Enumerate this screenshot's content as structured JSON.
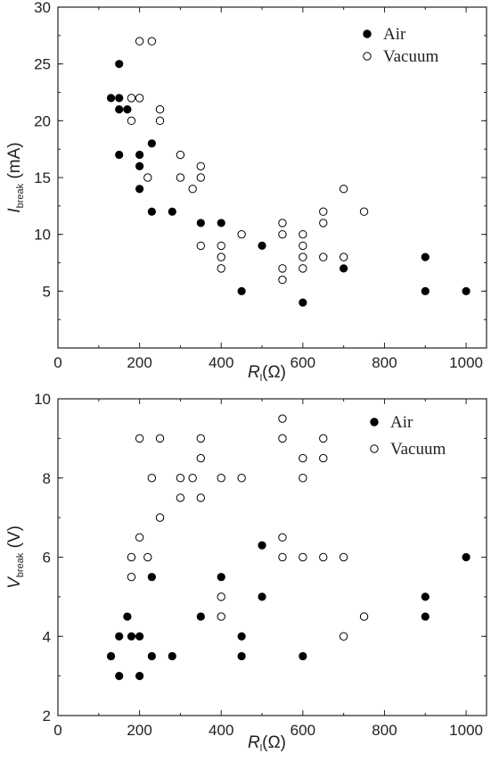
{
  "chart_data": [
    {
      "type": "scatter",
      "xlabel_main": "R",
      "xlabel_sub": "l",
      "xlabel_unit": "(Ω)",
      "ylabel_main": "I",
      "ylabel_sub": "break",
      "ylabel_unit": " (mA)",
      "xlim": [
        0,
        1050
      ],
      "ylim": [
        0,
        30
      ],
      "xticks": [
        0,
        200,
        400,
        600,
        800,
        1000
      ],
      "yticks": [
        5,
        10,
        15,
        20,
        25,
        30
      ],
      "ytick_labels": [
        "5",
        "10",
        "15",
        "20",
        "25",
        "30"
      ],
      "xtick_labels": [
        "0",
        "200",
        "400",
        "600",
        "800",
        "1000"
      ],
      "legend_position": "top-right",
      "series": [
        {
          "name": "Air",
          "marker": "filled-circle",
          "points": [
            [
              130,
              22
            ],
            [
              150,
              25
            ],
            [
              150,
              22
            ],
            [
              150,
              21
            ],
            [
              150,
              17
            ],
            [
              170,
              21
            ],
            [
              200,
              17
            ],
            [
              200,
              16
            ],
            [
              200,
              14
            ],
            [
              230,
              18
            ],
            [
              230,
              12
            ],
            [
              280,
              12
            ],
            [
              350,
              11
            ],
            [
              400,
              11
            ],
            [
              450,
              5
            ],
            [
              500,
              9
            ],
            [
              600,
              4
            ],
            [
              700,
              7
            ],
            [
              900,
              8
            ],
            [
              900,
              5
            ],
            [
              1000,
              5
            ]
          ]
        },
        {
          "name": "Vacuum",
          "marker": "open-circle",
          "points": [
            [
              180,
              22
            ],
            [
              180,
              20
            ],
            [
              200,
              27
            ],
            [
              200,
              22
            ],
            [
              220,
              15
            ],
            [
              230,
              27
            ],
            [
              250,
              21
            ],
            [
              250,
              20
            ],
            [
              300,
              17
            ],
            [
              300,
              15
            ],
            [
              330,
              14
            ],
            [
              350,
              16
            ],
            [
              350,
              15
            ],
            [
              350,
              9
            ],
            [
              400,
              9
            ],
            [
              400,
              8
            ],
            [
              400,
              7
            ],
            [
              450,
              10
            ],
            [
              550,
              11
            ],
            [
              550,
              10
            ],
            [
              550,
              7
            ],
            [
              550,
              6
            ],
            [
              600,
              10
            ],
            [
              600,
              9
            ],
            [
              600,
              8
            ],
            [
              600,
              7
            ],
            [
              650,
              12
            ],
            [
              650,
              11
            ],
            [
              650,
              8
            ],
            [
              700,
              14
            ],
            [
              700,
              8
            ],
            [
              750,
              12
            ]
          ]
        }
      ]
    },
    {
      "type": "scatter",
      "xlabel_main": "R",
      "xlabel_sub": "l",
      "xlabel_unit": "(Ω)",
      "ylabel_main": "V",
      "ylabel_sub": "break",
      "ylabel_unit": " (V)",
      "xlim": [
        0,
        1050
      ],
      "ylim": [
        2,
        10
      ],
      "xticks": [
        0,
        200,
        400,
        600,
        800,
        1000
      ],
      "yticks": [
        2,
        4,
        6,
        8,
        10
      ],
      "ytick_labels": [
        "2",
        "4",
        "6",
        "8",
        "10"
      ],
      "xtick_labels": [
        "0",
        "200",
        "400",
        "600",
        "800",
        "1000"
      ],
      "legend_position": "top-right",
      "series": [
        {
          "name": "Air",
          "marker": "filled-circle",
          "points": [
            [
              130,
              3.5
            ],
            [
              150,
              4
            ],
            [
              150,
              3
            ],
            [
              170,
              4.5
            ],
            [
              180,
              4
            ],
            [
              200,
              4
            ],
            [
              200,
              3
            ],
            [
              230,
              5.5
            ],
            [
              230,
              3.5
            ],
            [
              280,
              3.5
            ],
            [
              350,
              4.5
            ],
            [
              400,
              5.5
            ],
            [
              450,
              4
            ],
            [
              450,
              3.5
            ],
            [
              500,
              6.3
            ],
            [
              500,
              5
            ],
            [
              600,
              3.5
            ],
            [
              900,
              5
            ],
            [
              900,
              4.5
            ],
            [
              1000,
              6
            ]
          ]
        },
        {
          "name": "Vacuum",
          "marker": "open-circle",
          "points": [
            [
              180,
              6
            ],
            [
              180,
              5.5
            ],
            [
              200,
              9
            ],
            [
              200,
              6.5
            ],
            [
              220,
              6
            ],
            [
              230,
              8
            ],
            [
              250,
              9
            ],
            [
              250,
              7
            ],
            [
              300,
              8
            ],
            [
              300,
              7.5
            ],
            [
              330,
              8
            ],
            [
              350,
              9
            ],
            [
              350,
              8.5
            ],
            [
              350,
              7.5
            ],
            [
              400,
              8
            ],
            [
              400,
              5
            ],
            [
              400,
              4.5
            ],
            [
              450,
              8
            ],
            [
              550,
              9.5
            ],
            [
              550,
              9
            ],
            [
              550,
              6.5
            ],
            [
              550,
              6
            ],
            [
              600,
              8.5
            ],
            [
              600,
              8
            ],
            [
              600,
              6
            ],
            [
              650,
              9
            ],
            [
              650,
              8.5
            ],
            [
              650,
              6
            ],
            [
              700,
              6
            ],
            [
              700,
              4
            ],
            [
              750,
              4.5
            ]
          ]
        }
      ]
    }
  ]
}
